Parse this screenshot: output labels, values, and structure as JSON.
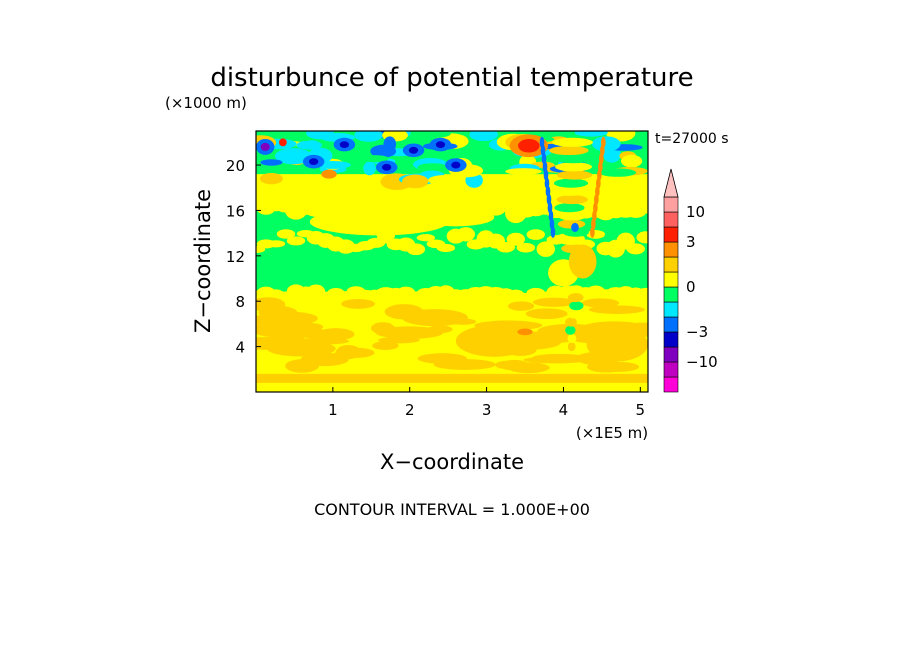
{
  "chart_data": {
    "type": "heatmap",
    "title": "disturbunce of potential temperature",
    "xlabel": "X−coordinate",
    "ylabel": "Z−coordinate",
    "x_unit": "(×1E5 m)",
    "y_unit": "(×1000 m)",
    "time_label": "t=27000 s",
    "footer": "CONTOUR INTERVAL = 1.000E+00",
    "xlim": [
      0,
      5.1
    ],
    "ylim": [
      0,
      23
    ],
    "x_ticks": [
      {
        "value": 1,
        "label": "1"
      },
      {
        "value": 2,
        "label": "2"
      },
      {
        "value": 3,
        "label": "3"
      },
      {
        "value": 4,
        "label": "4"
      },
      {
        "value": 5,
        "label": "5"
      }
    ],
    "y_ticks": [
      {
        "value": 4,
        "label": "4"
      },
      {
        "value": 8,
        "label": "8"
      },
      {
        "value": 12,
        "label": "12"
      },
      {
        "value": 16,
        "label": "16"
      },
      {
        "value": 20,
        "label": "20"
      }
    ],
    "colorbar": {
      "levels": [
        -20,
        -10,
        -5,
        -3,
        -2,
        -1,
        0,
        1,
        2,
        3,
        5,
        10,
        20
      ],
      "colors": [
        "#ff00d8",
        "#c000c0",
        "#8000c0",
        "#0000c8",
        "#0070ff",
        "#00e8ff",
        "#00ff60",
        "#ffff00",
        "#ffd000",
        "#ff9000",
        "#ff2000",
        "#ff6060",
        "#ffa0a0",
        "#ffc0c0"
      ],
      "labels": [
        {
          "value": -10,
          "label": "−10"
        },
        {
          "value": -3,
          "label": "−3"
        },
        {
          "value": 0,
          "label": "0"
        },
        {
          "value": 3,
          "label": "3"
        },
        {
          "value": 10,
          "label": "10"
        }
      ]
    },
    "regions": [
      {
        "z": [
          0,
          1.4
        ],
        "value": 1.5,
        "desc": "yellow-orange near surface"
      },
      {
        "z": [
          1.4,
          8.6
        ],
        "value": 1.2,
        "desc": "yellow/orange lower layer"
      },
      {
        "z": [
          8.6,
          16
        ],
        "value": 0.4,
        "desc": "green middle layer"
      },
      {
        "z": [
          16,
          19
        ],
        "value": 0.8,
        "desc": "yellow/green upper layer"
      },
      {
        "z": [
          19,
          23
        ],
        "value": -1.0,
        "desc": "mixed blue/red perturbations aloft"
      }
    ]
  }
}
